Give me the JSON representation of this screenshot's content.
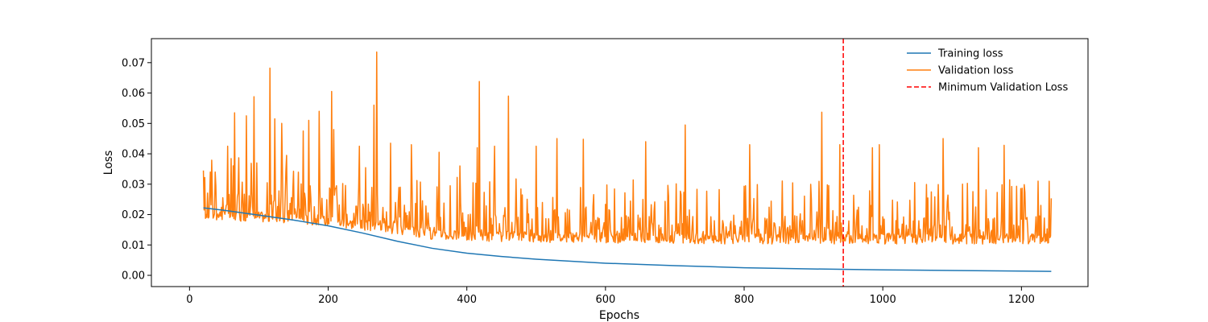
{
  "chart_data": {
    "type": "line",
    "xlabel": "Epochs",
    "ylabel": "Loss",
    "xlim": [
      -55,
      1296
    ],
    "ylim": [
      -0.0037,
      0.0779
    ],
    "x_ticks": [
      0,
      200,
      400,
      600,
      800,
      1000,
      1200
    ],
    "y_ticks": [
      0.0,
      0.01,
      0.02,
      0.03,
      0.04,
      0.05,
      0.06,
      0.07
    ],
    "y_tick_labels": [
      "0.00",
      "0.01",
      "0.02",
      "0.03",
      "0.04",
      "0.05",
      "0.06",
      "0.07"
    ],
    "legend_position": "top-right",
    "series": [
      {
        "name": "Training loss",
        "color": "#1f77b4",
        "x": [
          20,
          50,
          100,
          150,
          200,
          250,
          300,
          350,
          400,
          450,
          500,
          600,
          700,
          800,
          900,
          1000,
          1100,
          1200,
          1243
        ],
        "y": [
          0.0222,
          0.0214,
          0.0198,
          0.0182,
          0.0163,
          0.0139,
          0.0112,
          0.0089,
          0.0073,
          0.0062,
          0.0053,
          0.004,
          0.0032,
          0.0025,
          0.0021,
          0.0018,
          0.0016,
          0.0014,
          0.0013
        ]
      },
      {
        "name": "Validation loss",
        "color": "#ff7f0e",
        "x_start": 20,
        "x_end": 1243,
        "baseline": [
          [
            20,
            0.0195
          ],
          [
            100,
            0.0188
          ],
          [
            200,
            0.0175
          ],
          [
            250,
            0.016
          ],
          [
            300,
            0.0145
          ],
          [
            350,
            0.013
          ],
          [
            400,
            0.0125
          ],
          [
            500,
            0.012
          ],
          [
            600,
            0.0118
          ],
          [
            800,
            0.0115
          ],
          [
            1000,
            0.0115
          ],
          [
            1243,
            0.0115
          ]
        ],
        "peaks": [
          [
            20,
            0.0345
          ],
          [
            30,
            0.034
          ],
          [
            37,
            0.034
          ],
          [
            55,
            0.0425
          ],
          [
            65,
            0.0535
          ],
          [
            82,
            0.0525
          ],
          [
            93,
            0.0588
          ],
          [
            116,
            0.0682
          ],
          [
            123,
            0.0515
          ],
          [
            133,
            0.05
          ],
          [
            140,
            0.0395
          ],
          [
            164,
            0.0475
          ],
          [
            172,
            0.051
          ],
          [
            187,
            0.054
          ],
          [
            205,
            0.0605
          ],
          [
            208,
            0.048
          ],
          [
            245,
            0.0425
          ],
          [
            266,
            0.056
          ],
          [
            270,
            0.0735
          ],
          [
            290,
            0.0435
          ],
          [
            320,
            0.043
          ],
          [
            360,
            0.0405
          ],
          [
            390,
            0.036
          ],
          [
            415,
            0.042
          ],
          [
            418,
            0.0638
          ],
          [
            440,
            0.0425
          ],
          [
            460,
            0.059
          ],
          [
            500,
            0.0425
          ],
          [
            530,
            0.045
          ],
          [
            568,
            0.0448
          ],
          [
            658,
            0.044
          ],
          [
            715,
            0.0495
          ],
          [
            808,
            0.043
          ],
          [
            912,
            0.0537
          ],
          [
            938,
            0.043
          ],
          [
            985,
            0.042
          ],
          [
            995,
            0.043
          ],
          [
            1087,
            0.045
          ],
          [
            1138,
            0.042
          ],
          [
            1175,
            0.0428
          ]
        ]
      },
      {
        "name": "Minimum Validation Loss",
        "color": "#ff0000",
        "style": "dashed",
        "x": 943
      }
    ]
  }
}
